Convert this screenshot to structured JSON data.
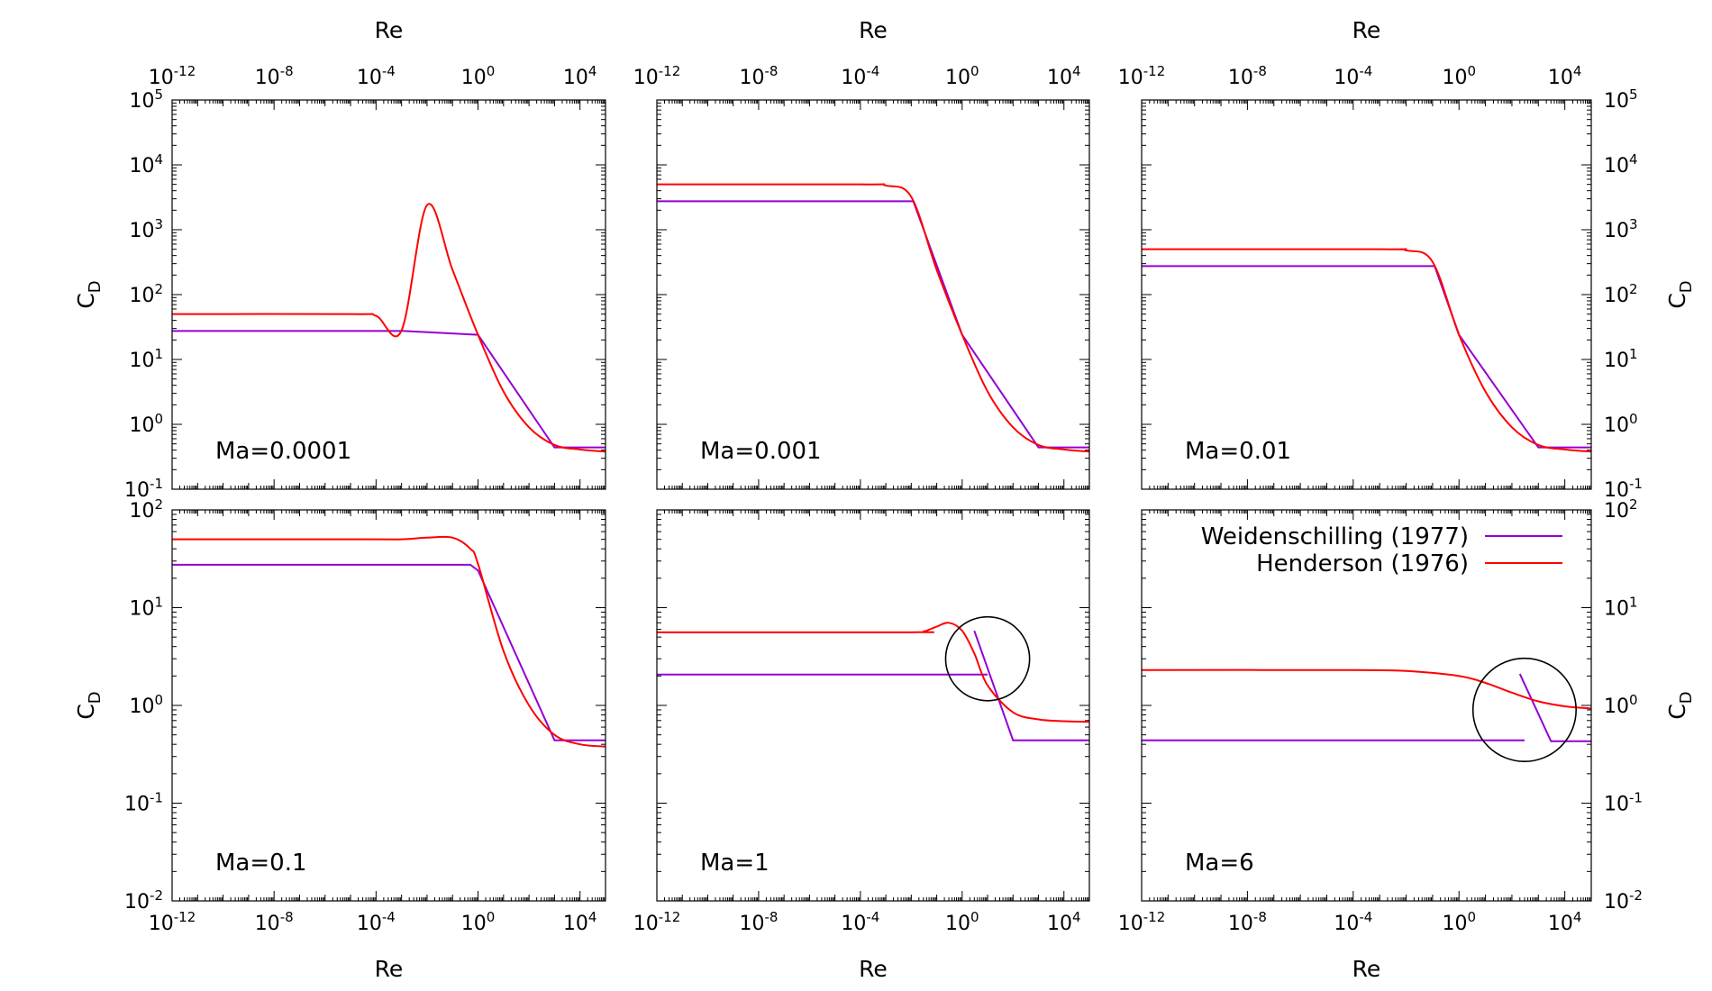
{
  "chart_data": {
    "type": "line",
    "layout": "2x3 grid of log-log subplots",
    "legend": {
      "placement": "top-right of lower-right panel",
      "entries": [
        {
          "label": "Weidenschilling (1977)",
          "color": "#9400d3"
        },
        {
          "label": "Henderson (1976)",
          "color": "#ff0000"
        }
      ]
    },
    "series_colors": {
      "weidenschilling": "#9400d3",
      "henderson": "#ff0000"
    },
    "x_axis": {
      "label": "Re",
      "scale": "log",
      "range": [
        1e-12,
        100000.0
      ],
      "tick_labels": [
        {
          "base": "10",
          "exp": "-12"
        },
        {
          "base": "10",
          "exp": "-8"
        },
        {
          "base": "10",
          "exp": "-4"
        },
        {
          "base": "10",
          "exp": "0"
        },
        {
          "base": "10",
          "exp": "4"
        }
      ]
    },
    "y_axis_top_row": {
      "label": "C",
      "label_sub": "D",
      "scale": "log",
      "range": [
        0.1,
        100000
      ],
      "tick_labels": [
        {
          "base": "10",
          "exp": "-1"
        },
        {
          "base": "10",
          "exp": "0"
        },
        {
          "base": "10",
          "exp": "1"
        },
        {
          "base": "10",
          "exp": "2"
        },
        {
          "base": "10",
          "exp": "3"
        },
        {
          "base": "10",
          "exp": "4"
        },
        {
          "base": "10",
          "exp": "5"
        }
      ]
    },
    "y_axis_bottom_row": {
      "label": "C",
      "label_sub": "D",
      "scale": "log",
      "range": [
        0.01,
        100
      ],
      "tick_labels": [
        {
          "base": "10",
          "exp": "-2"
        },
        {
          "base": "10",
          "exp": "-1"
        },
        {
          "base": "10",
          "exp": "0"
        },
        {
          "base": "10",
          "exp": "1"
        },
        {
          "base": "10",
          "exp": "2"
        }
      ]
    },
    "panels": [
      {
        "label": "Ma=0.0001",
        "row": 0,
        "weidenschilling": [
          [
            [
              1e-12,
              27.5
            ],
            [
              0.0012,
              27.5
            ],
            [
              1,
              24
            ],
            [
              1000,
              0.44
            ],
            [
              100000.0,
              0.44
            ]
          ]
        ],
        "henderson": [
          [
            1e-12,
            50
          ],
          [
            1e-05,
            50
          ],
          [
            0.0001,
            47
          ],
          [
            0.001,
            28
          ],
          [
            0.01,
            2400
          ],
          [
            0.1,
            240
          ],
          [
            1,
            24
          ],
          [
            10,
            3.2
          ],
          [
            100,
            0.9
          ],
          [
            1000,
            0.48
          ],
          [
            10000,
            0.41
          ],
          [
            100000,
            0.38
          ]
        ],
        "circle": null
      },
      {
        "label": "Ma=0.001",
        "row": 0,
        "weidenschilling": [
          [
            [
              1e-12,
              2750
            ],
            [
              0.012,
              2750
            ],
            [
              1,
              24
            ],
            [
              1000,
              0.44
            ],
            [
              100000.0,
              0.44
            ]
          ]
        ],
        "henderson": [
          [
            1e-12,
            5000
          ],
          [
            0.0001,
            5000
          ],
          [
            0.001,
            4800
          ],
          [
            0.01,
            3200
          ],
          [
            0.1,
            240
          ],
          [
            1,
            24
          ],
          [
            10,
            3.2
          ],
          [
            100,
            0.9
          ],
          [
            1000,
            0.48
          ],
          [
            10000,
            0.41
          ],
          [
            100000,
            0.38
          ]
        ],
        "circle": null
      },
      {
        "label": "Ma=0.01",
        "row": 0,
        "weidenschilling": [
          [
            [
              1e-12,
              275
            ],
            [
              0.12,
              275
            ],
            [
              1,
              24
            ],
            [
              1000,
              0.44
            ],
            [
              100000.0,
              0.44
            ]
          ]
        ],
        "henderson": [
          [
            1e-12,
            500
          ],
          [
            0.001,
            500
          ],
          [
            0.01,
            480
          ],
          [
            0.1,
            320
          ],
          [
            1,
            24
          ],
          [
            10,
            3.2
          ],
          [
            100,
            0.9
          ],
          [
            1000,
            0.48
          ],
          [
            10000,
            0.41
          ],
          [
            100000,
            0.38
          ]
        ],
        "circle": null
      },
      {
        "label": "Ma=0.1",
        "row": 1,
        "weidenschilling": [
          [
            [
              1e-12,
              27.5
            ],
            [
              0.5,
              27.5
            ],
            [
              1,
              24
            ],
            [
              1000,
              0.44
            ],
            [
              100000.0,
              0.44
            ]
          ]
        ],
        "henderson": [
          [
            1e-12,
            50
          ],
          [
            0.0001,
            50
          ],
          [
            0.001,
            50
          ],
          [
            0.01,
            52
          ],
          [
            0.1,
            52
          ],
          [
            0.5,
            40
          ],
          [
            1,
            28
          ],
          [
            10,
            3.6
          ],
          [
            100,
            1.0
          ],
          [
            1000,
            0.5
          ],
          [
            10000,
            0.4
          ],
          [
            100000,
            0.38
          ]
        ],
        "circle": null
      },
      {
        "label": "Ma=1",
        "row": 1,
        "weidenschilling": [
          [
            [
              1e-12,
              2.07
            ],
            [
              10,
              2.07
            ]
          ],
          [
            [
              3,
              5.8
            ],
            [
              100,
              0.44
            ],
            [
              100000.0,
              0.44
            ]
          ]
        ],
        "henderson": [
          [
            1e-12,
            5.6
          ],
          [
            0.01,
            5.6
          ],
          [
            0.03,
            5.7
          ],
          [
            0.1,
            6.4
          ],
          [
            0.3,
            7.0
          ],
          [
            1,
            5.8
          ],
          [
            3,
            3.4
          ],
          [
            10,
            1.6
          ],
          [
            100,
            0.85
          ],
          [
            1000,
            0.72
          ],
          [
            10000,
            0.69
          ],
          [
            100000,
            0.68
          ]
        ],
        "circle": {
          "x": 10,
          "y": 3.0,
          "r_decades": 1.65
        }
      },
      {
        "label": "Ma=6",
        "row": 1,
        "weidenschilling": [
          [
            [
              1e-12,
              0.44
            ],
            [
              300,
              0.44
            ]
          ],
          [
            [
              200,
              2.1
            ],
            [
              3000,
              0.43
            ],
            [
              100000.0,
              0.43
            ]
          ]
        ],
        "henderson": [
          [
            1e-12,
            2.3
          ],
          [
            0.0001,
            2.3
          ],
          [
            0.01,
            2.25
          ],
          [
            1,
            2.0
          ],
          [
            10,
            1.7
          ],
          [
            100,
            1.35
          ],
          [
            1000,
            1.1
          ],
          [
            10000,
            0.98
          ],
          [
            100000,
            0.93
          ]
        ],
        "circle": {
          "x": 300,
          "y": 0.9,
          "r_decades": 1.95
        }
      }
    ]
  }
}
